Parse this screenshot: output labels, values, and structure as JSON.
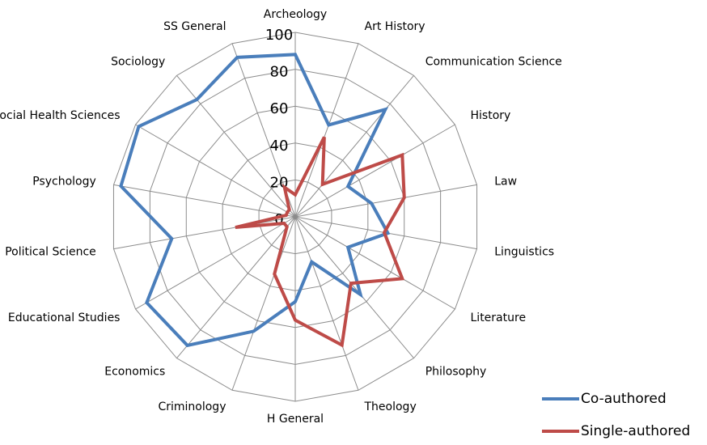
{
  "chart_data": {
    "type": "radar",
    "categories": [
      "Archeology",
      "Art History",
      "Communication Science",
      "History",
      "Law",
      "Linguistics",
      "Literature",
      "Philosophy",
      "Theology",
      "H General",
      "Criminology",
      "Economics",
      "Educational Studies",
      "Political Science",
      "Psychology",
      "Social Health Sciences",
      "Sociology",
      "SS General"
    ],
    "series": [
      {
        "name": "Co-authored",
        "color": "#4a7ebb",
        "values": [
          88,
          53,
          76,
          33,
          42,
          51,
          33,
          55,
          26,
          46,
          66,
          91,
          93,
          68,
          96,
          98,
          83,
          92
        ]
      },
      {
        "name": "Single-authored",
        "color": "#be4b48",
        "values": [
          12,
          46,
          23,
          67,
          60,
          49,
          67,
          47,
          74,
          56,
          33,
          7,
          7,
          33,
          5,
          5,
          5,
          17
        ]
      }
    ],
    "ylim": [
      0,
      100
    ],
    "yticks": [
      0,
      20,
      40,
      60,
      80,
      100
    ],
    "grid": true,
    "legend": "bottom-right"
  }
}
